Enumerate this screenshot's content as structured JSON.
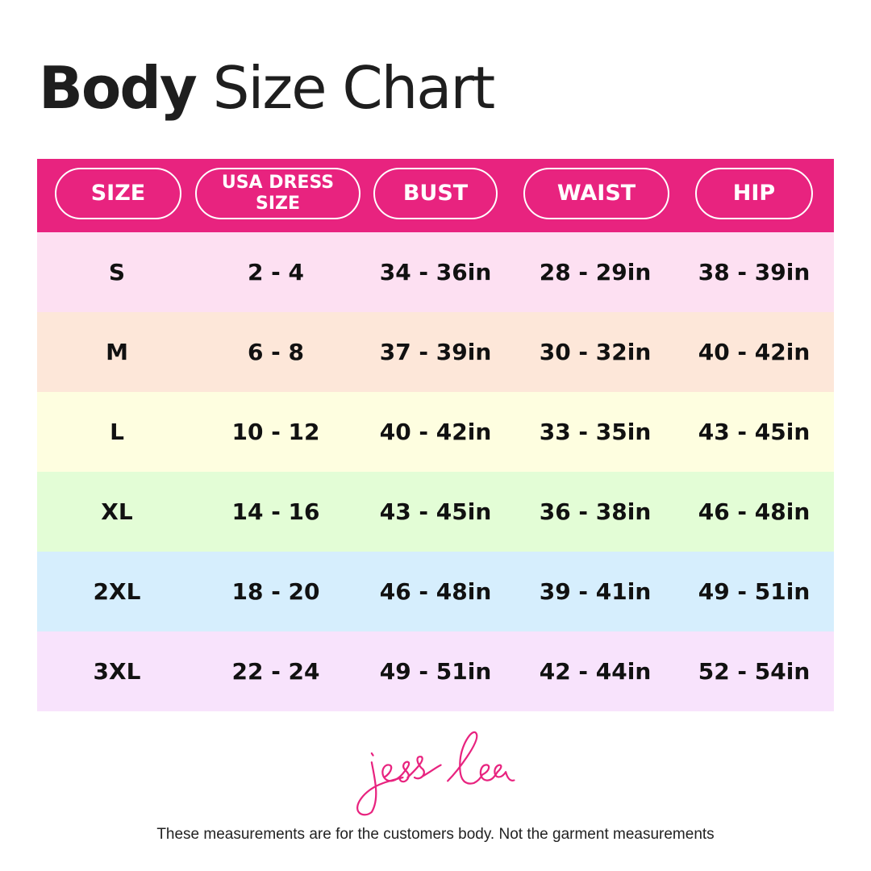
{
  "title": {
    "bold": "Body",
    "rest": "Size Chart"
  },
  "colors": {
    "header": "#e8237f",
    "logo": "#e8237f",
    "rows": [
      "#fde0f2",
      "#fde7d9",
      "#fefee0",
      "#e3fdd6",
      "#d6eefd",
      "#f8e3fc"
    ]
  },
  "table": {
    "headers": [
      "SIZE",
      "USA DRESS SIZE",
      "BUST",
      "WAIST",
      "HIP"
    ],
    "rows": [
      [
        "S",
        "2 - 4",
        "34 - 36in",
        "28 - 29in",
        "38 - 39in"
      ],
      [
        "M",
        "6 - 8",
        "37 - 39in",
        "30 - 32in",
        "40 - 42in"
      ],
      [
        "L",
        "10 - 12",
        "40 - 42in",
        "33 - 35in",
        "43 - 45in"
      ],
      [
        "XL",
        "14 - 16",
        "43 - 45in",
        "36 - 38in",
        "46 - 48in"
      ],
      [
        "2XL",
        "18 - 20",
        "46 - 48in",
        "39 - 41in",
        "49 - 51in"
      ],
      [
        "3XL",
        "22 - 24",
        "49 - 51in",
        "42 - 44in",
        "52 - 54in"
      ]
    ]
  },
  "logo": {
    "text": "jess lea"
  },
  "footer_note": "These measurements are for the customers body. Not the garment measurements"
}
